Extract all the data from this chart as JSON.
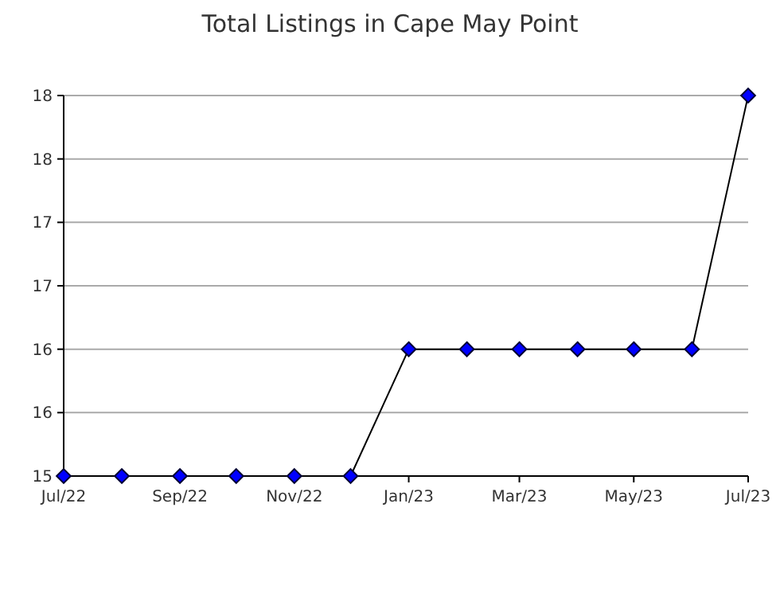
{
  "chart_data": {
    "type": "line",
    "title": "Total Listings in Cape May Point",
    "x": [
      "2022-07",
      "2022-08",
      "2022-09",
      "2022-10",
      "2022-11",
      "2022-12",
      "2023-01",
      "2023-02",
      "2023-03",
      "2023-04",
      "2023-05",
      "2023-06",
      "2023-07"
    ],
    "series": [
      {
        "color": "#0000ff",
        "values": [
          15,
          15,
          15,
          15,
          15,
          15,
          16,
          16,
          16,
          16,
          16,
          16,
          18
        ]
      }
    ],
    "xlim": [
      "2022-07",
      "2023-07"
    ],
    "xticks": [
      {
        "value": "2022-07",
        "label": "Jul/22"
      },
      {
        "value": "2022-09",
        "label": "Sep/22"
      },
      {
        "value": "2022-11",
        "label": "Nov/22"
      },
      {
        "value": "2023-01",
        "label": "Jan/23"
      },
      {
        "value": "2023-03",
        "label": "Mar/23"
      },
      {
        "value": "2023-05",
        "label": "May/23"
      },
      {
        "value": "2023-07",
        "label": "Jul/23"
      }
    ],
    "ylim": [
      15,
      18
    ],
    "yticks": [
      15,
      {
        "value": 15.5,
        "label": "16"
      },
      16,
      {
        "value": 16.5,
        "label": "17"
      },
      17,
      {
        "value": 17.5,
        "label": "18"
      },
      18
    ],
    "grid": "y",
    "marker": "diamond",
    "line_style": "solid"
  }
}
